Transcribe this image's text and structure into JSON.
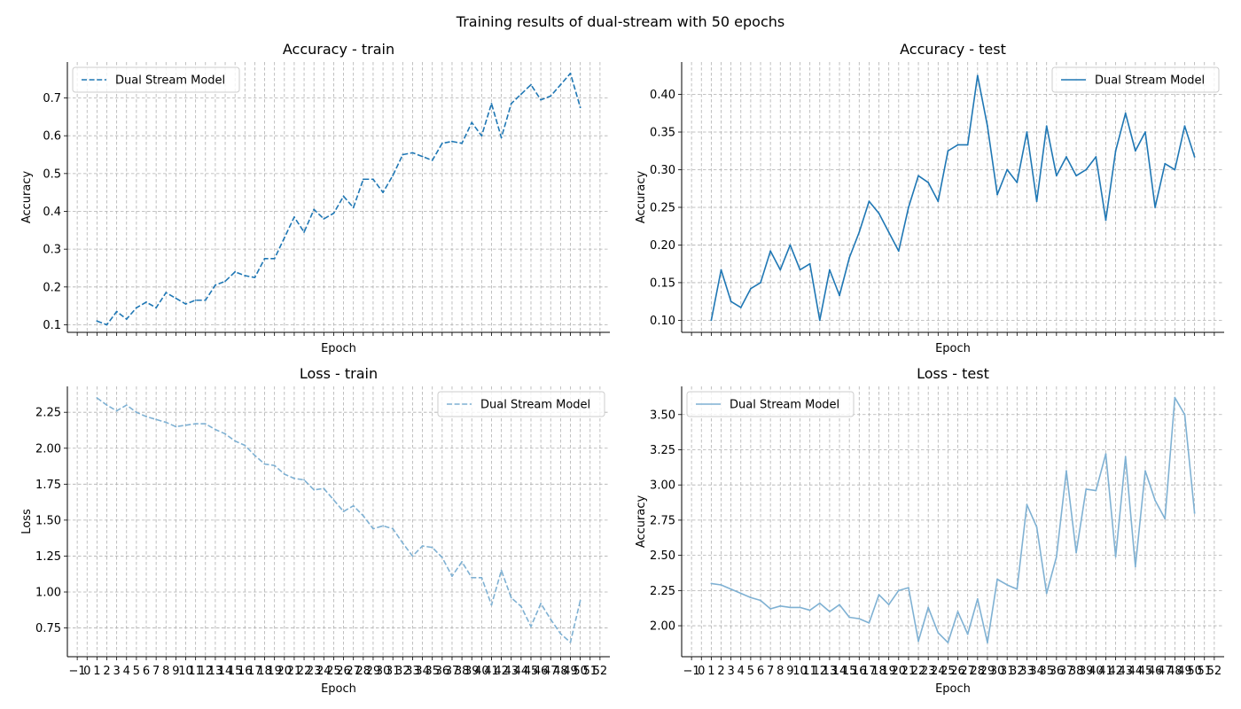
{
  "figure": {
    "suptitle": "Training results of dual-stream with 50 epochs"
  },
  "colors": {
    "dark_blue": "#1f77b4",
    "light_blue": "#7fb1d3"
  },
  "chart_data": [
    {
      "type": "line",
      "title": "Accuracy - train",
      "xlabel": "Epoch",
      "ylabel": "Accuracy",
      "xlim": [
        -2,
        53
      ],
      "ylim": [
        0.08,
        0.795
      ],
      "yticks": [
        "0.1",
        "0.2",
        "0.3",
        "0.4",
        "0.5",
        "0.6",
        "0.7"
      ],
      "ytick_values": [
        0.1,
        0.2,
        0.3,
        0.4,
        0.5,
        0.6,
        0.7
      ],
      "show_xtick_labels": false,
      "grid": true,
      "legend_position": "upper-left",
      "series": [
        {
          "name": "Dual Stream Model",
          "style": "dashed",
          "color": "#1f77b4",
          "x": [
            1,
            2,
            3,
            4,
            5,
            6,
            7,
            8,
            9,
            10,
            11,
            12,
            13,
            14,
            15,
            16,
            17,
            18,
            19,
            20,
            21,
            22,
            23,
            24,
            25,
            26,
            27,
            28,
            29,
            30,
            31,
            32,
            33,
            34,
            35,
            36,
            37,
            38,
            39,
            40,
            41,
            42,
            43,
            44,
            45,
            46,
            47,
            48,
            49,
            50
          ],
          "values": [
            0.11,
            0.1,
            0.135,
            0.115,
            0.145,
            0.16,
            0.145,
            0.185,
            0.17,
            0.155,
            0.165,
            0.165,
            0.205,
            0.215,
            0.24,
            0.23,
            0.225,
            0.275,
            0.275,
            0.33,
            0.385,
            0.345,
            0.405,
            0.38,
            0.395,
            0.44,
            0.41,
            0.485,
            0.485,
            0.45,
            0.495,
            0.55,
            0.555,
            0.545,
            0.535,
            0.58,
            0.585,
            0.58,
            0.635,
            0.6,
            0.685,
            0.595,
            0.685,
            0.71,
            0.735,
            0.695,
            0.705,
            0.735,
            0.765,
            0.675
          ]
        }
      ]
    },
    {
      "type": "line",
      "title": "Accuracy - test",
      "xlabel": "Epoch",
      "ylabel": "Accuracy",
      "xlim": [
        -2,
        53
      ],
      "ylim": [
        0.084,
        0.443
      ],
      "yticks": [
        "0.10",
        "0.15",
        "0.20",
        "0.25",
        "0.30",
        "0.35",
        "0.40"
      ],
      "ytick_values": [
        0.1,
        0.15,
        0.2,
        0.25,
        0.3,
        0.35,
        0.4
      ],
      "show_xtick_labels": false,
      "grid": true,
      "legend_position": "upper-right",
      "series": [
        {
          "name": "Dual Stream Model",
          "style": "solid",
          "color": "#1f77b4",
          "x": [
            1,
            2,
            3,
            4,
            5,
            6,
            7,
            8,
            9,
            10,
            11,
            12,
            13,
            14,
            15,
            16,
            17,
            18,
            19,
            20,
            21,
            22,
            23,
            24,
            25,
            26,
            27,
            28,
            29,
            30,
            31,
            32,
            33,
            34,
            35,
            36,
            37,
            38,
            39,
            40,
            41,
            42,
            43,
            44,
            45,
            46,
            47,
            48,
            49,
            50
          ],
          "values": [
            0.1,
            0.167,
            0.125,
            0.117,
            0.142,
            0.15,
            0.192,
            0.167,
            0.2,
            0.167,
            0.175,
            0.1,
            0.167,
            0.133,
            0.183,
            0.217,
            0.258,
            0.242,
            0.217,
            0.192,
            0.25,
            0.292,
            0.283,
            0.258,
            0.325,
            0.333,
            0.333,
            0.425,
            0.358,
            0.267,
            0.3,
            0.283,
            0.35,
            0.258,
            0.358,
            0.292,
            0.317,
            0.292,
            0.3,
            0.317,
            0.233,
            0.325,
            0.375,
            0.325,
            0.35,
            0.25,
            0.308,
            0.3,
            0.358,
            0.317
          ]
        }
      ]
    },
    {
      "type": "line",
      "title": "Loss - train",
      "xlabel": "Epoch",
      "ylabel": "Loss",
      "xlim": [
        -2,
        53
      ],
      "ylim": [
        0.55,
        2.43
      ],
      "yticks": [
        "0.75",
        "1.00",
        "1.25",
        "1.50",
        "1.75",
        "2.00",
        "2.25"
      ],
      "ytick_values": [
        0.75,
        1.0,
        1.25,
        1.5,
        1.75,
        2.0,
        2.25
      ],
      "xticks": [
        "−1",
        "0",
        "1",
        "2",
        "3",
        "4",
        "5",
        "6",
        "7",
        "8",
        "9",
        "10",
        "11",
        "12",
        "13",
        "14",
        "15",
        "16",
        "17",
        "18",
        "19",
        "20",
        "21",
        "22",
        "23",
        "24",
        "25",
        "26",
        "27",
        "28",
        "29",
        "30",
        "31",
        "32",
        "33",
        "34",
        "35",
        "36",
        "37",
        "38",
        "39",
        "40",
        "41",
        "42",
        "43",
        "44",
        "45",
        "46",
        "47",
        "48",
        "49",
        "50",
        "51",
        "52"
      ],
      "xtick_values": [
        -1,
        0,
        1,
        2,
        3,
        4,
        5,
        6,
        7,
        8,
        9,
        10,
        11,
        12,
        13,
        14,
        15,
        16,
        17,
        18,
        19,
        20,
        21,
        22,
        23,
        24,
        25,
        26,
        27,
        28,
        29,
        30,
        31,
        32,
        33,
        34,
        35,
        36,
        37,
        38,
        39,
        40,
        41,
        42,
        43,
        44,
        45,
        46,
        47,
        48,
        49,
        50,
        51,
        52
      ],
      "show_xtick_labels": true,
      "grid": true,
      "legend_position": "upper-right",
      "series": [
        {
          "name": "Dual Stream Model",
          "style": "dashed",
          "color": "#7fb1d3",
          "x": [
            1,
            2,
            3,
            4,
            5,
            6,
            7,
            8,
            9,
            10,
            11,
            12,
            13,
            14,
            15,
            16,
            17,
            18,
            19,
            20,
            21,
            22,
            23,
            24,
            25,
            26,
            27,
            28,
            29,
            30,
            31,
            32,
            33,
            34,
            35,
            36,
            37,
            38,
            39,
            40,
            41,
            42,
            43,
            44,
            45,
            46,
            47,
            48,
            49,
            50
          ],
          "values": [
            2.35,
            2.3,
            2.26,
            2.3,
            2.25,
            2.22,
            2.2,
            2.18,
            2.15,
            2.16,
            2.17,
            2.17,
            2.13,
            2.1,
            2.05,
            2.02,
            1.95,
            1.89,
            1.88,
            1.82,
            1.79,
            1.78,
            1.71,
            1.72,
            1.64,
            1.56,
            1.6,
            1.53,
            1.44,
            1.46,
            1.44,
            1.34,
            1.25,
            1.32,
            1.31,
            1.24,
            1.11,
            1.21,
            1.1,
            1.1,
            0.91,
            1.15,
            0.96,
            0.9,
            0.76,
            0.92,
            0.81,
            0.71,
            0.65,
            0.94
          ]
        }
      ]
    },
    {
      "type": "line",
      "title": "Loss - test",
      "xlabel": "Epoch",
      "ylabel": "Accuracy",
      "xlim": [
        -2,
        53
      ],
      "ylim": [
        1.78,
        3.7
      ],
      "yticks": [
        "2.00",
        "2.25",
        "2.50",
        "2.75",
        "3.00",
        "3.25",
        "3.50"
      ],
      "ytick_values": [
        2.0,
        2.25,
        2.5,
        2.75,
        3.0,
        3.25,
        3.5
      ],
      "xticks": [
        "−1",
        "0",
        "1",
        "2",
        "3",
        "4",
        "5",
        "6",
        "7",
        "8",
        "9",
        "10",
        "11",
        "12",
        "13",
        "14",
        "15",
        "16",
        "17",
        "18",
        "19",
        "20",
        "21",
        "22",
        "23",
        "24",
        "25",
        "26",
        "27",
        "28",
        "29",
        "30",
        "31",
        "32",
        "33",
        "34",
        "35",
        "36",
        "37",
        "38",
        "39",
        "40",
        "41",
        "42",
        "43",
        "44",
        "45",
        "46",
        "47",
        "48",
        "49",
        "50",
        "51",
        "52"
      ],
      "xtick_values": [
        -1,
        0,
        1,
        2,
        3,
        4,
        5,
        6,
        7,
        8,
        9,
        10,
        11,
        12,
        13,
        14,
        15,
        16,
        17,
        18,
        19,
        20,
        21,
        22,
        23,
        24,
        25,
        26,
        27,
        28,
        29,
        30,
        31,
        32,
        33,
        34,
        35,
        36,
        37,
        38,
        39,
        40,
        41,
        42,
        43,
        44,
        45,
        46,
        47,
        48,
        49,
        50,
        51,
        52
      ],
      "show_xtick_labels": true,
      "grid": true,
      "legend_position": "upper-left",
      "series": [
        {
          "name": "Dual Stream Model",
          "style": "solid",
          "color": "#7fb1d3",
          "x": [
            1,
            2,
            3,
            4,
            5,
            6,
            7,
            8,
            9,
            10,
            11,
            12,
            13,
            14,
            15,
            16,
            17,
            18,
            19,
            20,
            21,
            22,
            23,
            24,
            25,
            26,
            27,
            28,
            29,
            30,
            31,
            32,
            33,
            34,
            35,
            36,
            37,
            38,
            39,
            40,
            41,
            42,
            43,
            44,
            45,
            46,
            47,
            48,
            49,
            50
          ],
          "values": [
            2.3,
            2.29,
            2.26,
            2.23,
            2.2,
            2.18,
            2.12,
            2.14,
            2.13,
            2.13,
            2.11,
            2.16,
            2.1,
            2.15,
            2.06,
            2.05,
            2.02,
            2.22,
            2.15,
            2.25,
            2.27,
            1.89,
            2.13,
            1.95,
            1.88,
            2.1,
            1.94,
            2.19,
            1.88,
            2.33,
            2.29,
            2.26,
            2.86,
            2.7,
            2.23,
            2.49,
            3.1,
            2.52,
            2.97,
            2.96,
            3.22,
            2.49,
            3.2,
            2.42,
            3.1,
            2.89,
            2.76,
            3.62,
            3.5,
            2.8
          ]
        }
      ]
    }
  ]
}
